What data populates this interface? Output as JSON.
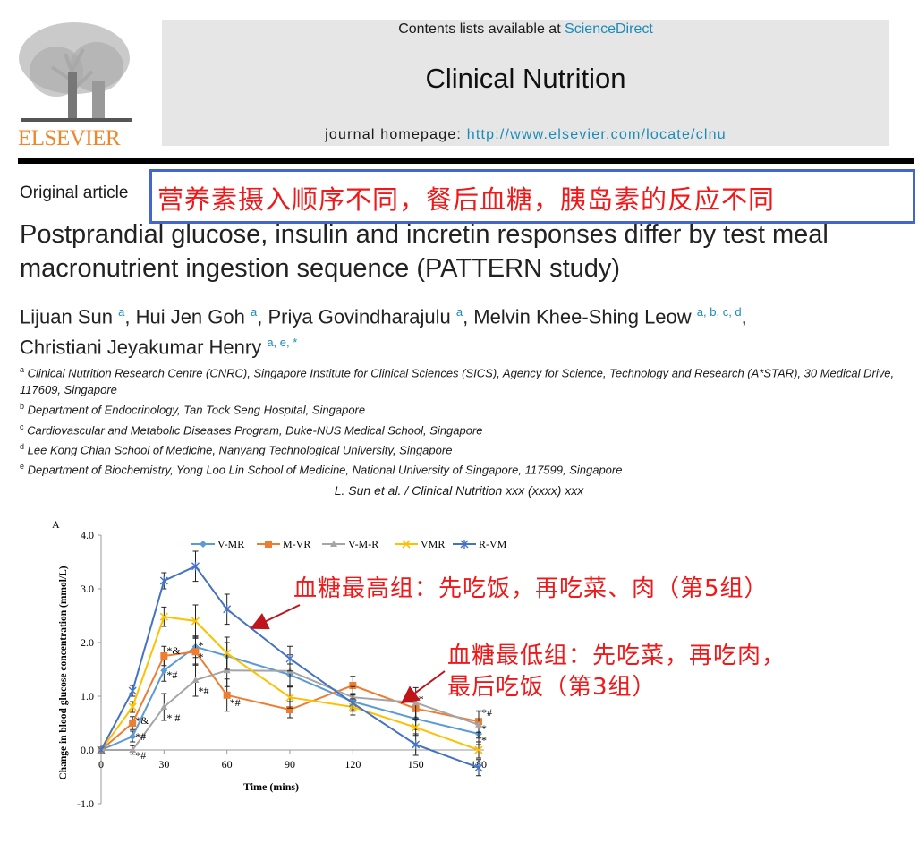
{
  "header": {
    "publisher_logo": "ELSEVIER",
    "contents_prefix": "Contents lists available at ",
    "contents_link": "ScienceDirect",
    "journal_title": "Clinical Nutrition",
    "homepage_prefix": "journal homepage: ",
    "homepage_link": "http://www.elsevier.com/locate/clnu"
  },
  "article": {
    "type": "Original article",
    "callout": "营养素摄入顺序不同，餐后血糖，胰岛素的反应不同",
    "title": "Postprandial glucose, insulin and incretin responses differ by test meal macronutrient ingestion sequence (PATTERN study)",
    "authors": [
      {
        "name": "Lijuan Sun",
        "sup": "a"
      },
      {
        "name": "Hui Jen Goh",
        "sup": "a"
      },
      {
        "name": "Priya Govindharajulu",
        "sup": "a"
      },
      {
        "name": "Melvin Khee-Shing Leow",
        "sup": "a, b, c, d"
      },
      {
        "name": "Christiani Jeyakumar Henry",
        "sup": "a, e, *"
      }
    ],
    "affiliations": [
      {
        "key": "a",
        "text": "Clinical Nutrition Research Centre (CNRC), Singapore Institute for Clinical Sciences (SICS), Agency for Science, Technology and Research (A*STAR), 30 Medical Drive, 117609, Singapore"
      },
      {
        "key": "b",
        "text": "Department of Endocrinology, Tan Tock Seng Hospital, Singapore"
      },
      {
        "key": "c",
        "text": "Cardiovascular and Metabolic Diseases Program, Duke-NUS Medical School, Singapore"
      },
      {
        "key": "d",
        "text": "Lee Kong Chian School of Medicine, Nanyang Technological University, Singapore"
      },
      {
        "key": "e",
        "text": "Department of Biochemistry, Yong Loo Lin School of Medicine, National University of Singapore, 117599, Singapore"
      }
    ],
    "running_head": "L. Sun et al. / Clinical Nutrition xxx (xxxx) xxx"
  },
  "annotations": {
    "highest": "血糖最高组：先吃饭，再吃菜、肉（第5组）",
    "lowest_line1": "血糖最低组：先吃菜，再吃肉，",
    "lowest_line2": "最后吃饭（第3组）",
    "arrow_color": "#c0141c"
  },
  "chart_data": {
    "type": "line",
    "panel_label": "A",
    "xlabel": "Time (mins)",
    "ylabel": "Change in blood glucose concentration (mmol/L)",
    "x": [
      0,
      15,
      30,
      45,
      60,
      90,
      120,
      150,
      180
    ],
    "x_ticks": [
      "0",
      "30",
      "60",
      "90",
      "120",
      "150",
      "180"
    ],
    "x_tick_values": [
      0,
      30,
      60,
      90,
      120,
      150,
      180
    ],
    "ylim": [
      -1.0,
      4.0
    ],
    "y_ticks": [
      "-1.0",
      "0.0",
      "1.0",
      "2.0",
      "3.0",
      "4.0"
    ],
    "y_tick_values": [
      -1,
      0,
      1,
      2,
      3,
      4
    ],
    "grid": false,
    "legend_position": "top",
    "series": [
      {
        "name": "V-MR",
        "color": "#5b9bd5",
        "marker": "diamond",
        "values": [
          0,
          0.25,
          1.48,
          1.92,
          1.75,
          1.4,
          0.9,
          0.58,
          0.3
        ],
        "errors": [
          0,
          0.1,
          0.2,
          0.2,
          0.25,
          0.2,
          0.15,
          0.2,
          0.2
        ]
      },
      {
        "name": "M-VR",
        "color": "#ed7d31",
        "marker": "square",
        "values": [
          0,
          0.5,
          1.75,
          1.83,
          1.02,
          0.75,
          1.2,
          0.77,
          0.53
        ],
        "errors": [
          0,
          0.12,
          0.18,
          0.25,
          0.3,
          0.15,
          0.17,
          0.2,
          0.2
        ]
      },
      {
        "name": "V-M-R",
        "color": "#a5a5a5",
        "marker": "triangle",
        "values": [
          0,
          0,
          0.8,
          1.3,
          1.48,
          1.47,
          0.98,
          0.88,
          0.47
        ],
        "errors": [
          0,
          0.08,
          0.25,
          0.3,
          0.3,
          0.3,
          0.2,
          0.28,
          0.25
        ]
      },
      {
        "name": "VMR",
        "color": "#ffc000",
        "marker": "x",
        "values": [
          0,
          0.8,
          2.48,
          2.4,
          1.8,
          0.98,
          0.8,
          0.42,
          0
        ],
        "errors": [
          0,
          0.1,
          0.18,
          0.3,
          0.3,
          0.2,
          0.15,
          0.15,
          0.15
        ]
      },
      {
        "name": "R-VM",
        "color": "#4472c4",
        "marker": "star",
        "values": [
          0,
          1.1,
          3.15,
          3.42,
          2.62,
          1.7,
          0.87,
          0.1,
          -0.33
        ],
        "errors": [
          0,
          0.1,
          0.15,
          0.28,
          0.28,
          0.23,
          0.15,
          0.2,
          0.15
        ]
      }
    ],
    "significance_labels": [
      {
        "x": 15,
        "y": 0.55,
        "text": "*&"
      },
      {
        "x": 15,
        "y": 0.25,
        "text": "*#"
      },
      {
        "x": 15,
        "y": -0.1,
        "text": "*#"
      },
      {
        "x": 30,
        "y": 1.85,
        "text": "*&"
      },
      {
        "x": 30,
        "y": 1.4,
        "text": "*#"
      },
      {
        "x": 30,
        "y": 0.6,
        "text": "* #"
      },
      {
        "x": 45,
        "y": 1.95,
        "text": "*"
      },
      {
        "x": 45,
        "y": 1.75,
        "text": "*"
      },
      {
        "x": 45,
        "y": 1.1,
        "text": "*#"
      },
      {
        "x": 60,
        "y": 0.88,
        "text": "*#"
      },
      {
        "x": 150,
        "y": 0.95,
        "text": "*"
      },
      {
        "x": 180,
        "y": 0.7,
        "text": "*#"
      },
      {
        "x": 180,
        "y": 0.4,
        "text": "*"
      },
      {
        "x": 180,
        "y": 0.25,
        "text": "*"
      }
    ]
  }
}
